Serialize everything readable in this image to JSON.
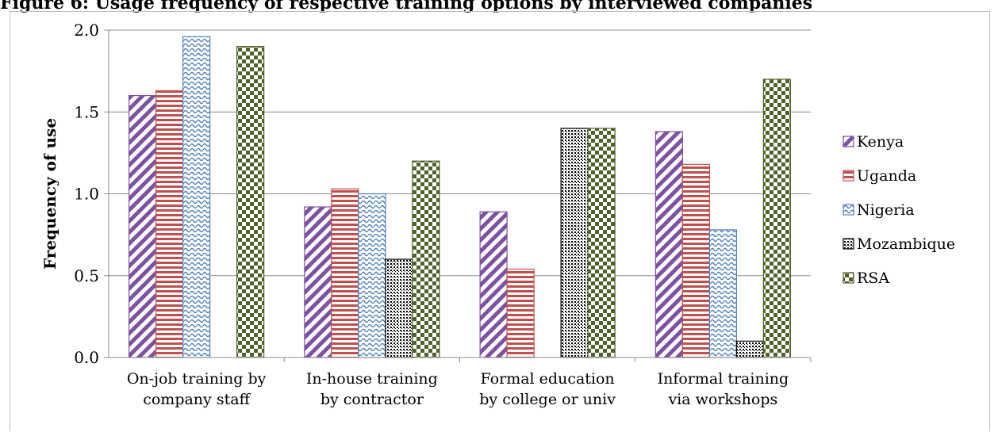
{
  "title": "Figure 6: Usage frequency of respective training options by interviewed companies",
  "chart_data": {
    "type": "bar",
    "ylabel": "Frequency of use",
    "xlabel": "",
    "ylim": [
      0,
      2
    ],
    "yticks": [
      "0.0",
      "0.5",
      "1.0",
      "1.5",
      "2.0"
    ],
    "grid": true,
    "legend_position": "right",
    "categories": [
      [
        "On-job training by",
        "company staff"
      ],
      [
        "In-house training",
        "by contractor"
      ],
      [
        "Formal education",
        "by college or univ"
      ],
      [
        "Informal training",
        "via workshops"
      ]
    ],
    "series": [
      {
        "name": "Kenya",
        "values": [
          1.6,
          0.92,
          0.89,
          1.38
        ],
        "color": "#7e52a0",
        "pattern": "diagonal"
      },
      {
        "name": "Uganda",
        "values": [
          1.63,
          1.03,
          0.54,
          1.18
        ],
        "color": "#c0504d",
        "pattern": "horizontal"
      },
      {
        "name": "Nigeria",
        "values": [
          1.96,
          1.0,
          0,
          0.78
        ],
        "color": "#4f81bd",
        "pattern": "wave"
      },
      {
        "name": "Mozambique",
        "values": [
          0,
          0.6,
          1.4,
          0.1
        ],
        "color": "#000000",
        "pattern": "dots"
      },
      {
        "name": "RSA",
        "values": [
          1.9,
          1.2,
          1.4,
          1.7
        ],
        "color": "#4f6228",
        "pattern": "checker"
      }
    ]
  }
}
